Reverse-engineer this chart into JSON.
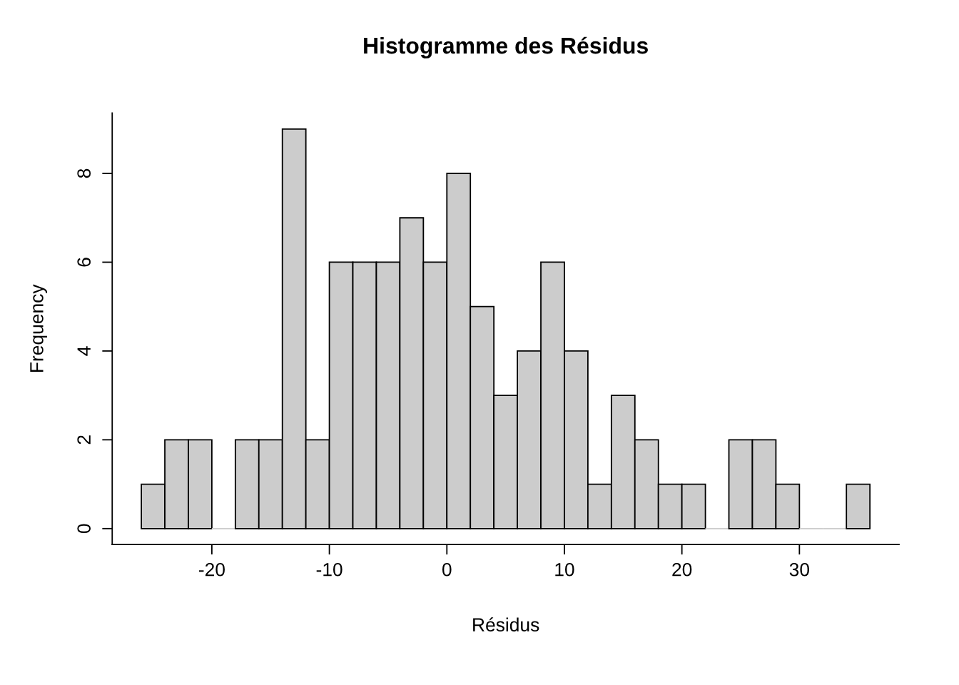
{
  "chart_data": {
    "type": "histogram",
    "title": "Histogramme des Résidus",
    "xlabel": "Résidus",
    "ylabel": "Frequency",
    "bins": [
      -26,
      -24,
      -22,
      -20,
      -18,
      -16,
      -14,
      -12,
      -10,
      -8,
      -6,
      -4,
      -2,
      0,
      2,
      4,
      6,
      8,
      10,
      12,
      14,
      16,
      18,
      20,
      22,
      24,
      26,
      28,
      30,
      32,
      34,
      36
    ],
    "values": [
      1,
      2,
      2,
      0,
      2,
      2,
      9,
      2,
      6,
      6,
      6,
      7,
      6,
      8,
      5,
      3,
      4,
      6,
      4,
      1,
      3,
      2,
      1,
      1,
      0,
      2,
      2,
      1,
      0,
      0,
      1
    ],
    "color": "#cccccc",
    "xlim": [
      -28.48,
      38.48
    ],
    "ylim": [
      -0.36,
      9.36
    ],
    "xticks": [
      -20,
      -10,
      0,
      10,
      20,
      30
    ],
    "yticks": [
      0,
      2,
      4,
      6,
      8
    ],
    "grid": false
  }
}
